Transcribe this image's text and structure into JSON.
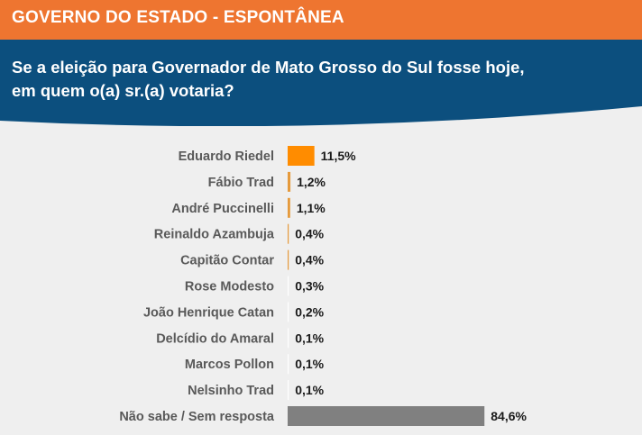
{
  "header": {
    "title": "GOVERNO DO ESTADO - ESPONTÂNEA",
    "question_line1": "Se a eleição para Governador de Mato Grosso do Sul fosse hoje,",
    "question_line2": "em quem o(a) sr.(a) votaria?"
  },
  "colors": {
    "header_orange": "#ee7530",
    "panel_blue": "#0c4f7e",
    "bar_orange": "#ff8c00",
    "bar_orange_thin": "#e59a3c",
    "bar_gray": "#808080",
    "background": "#efefef"
  },
  "chart_data": {
    "type": "bar",
    "orientation": "horizontal",
    "categories": [
      "Eduardo Riedel",
      "Fábio Trad",
      "André Puccinelli",
      "Reinaldo Azambuja",
      "Capitão Contar",
      "Rose Modesto",
      "João Henrique Catan",
      "Delcídio do Amaral",
      "Marcos Pollon",
      "Nelsinho Trad",
      "Não sabe / Sem resposta"
    ],
    "values": [
      11.5,
      1.2,
      1.1,
      0.4,
      0.4,
      0.3,
      0.2,
      0.1,
      0.1,
      0.1,
      84.6
    ],
    "value_labels": [
      "11,5%",
      "1,2%",
      "1,1%",
      "0,4%",
      "0,4%",
      "0,3%",
      "0,2%",
      "0,1%",
      "0,1%",
      "0,1%",
      "84,6%"
    ],
    "bar_colors": [
      "#ff8c00",
      "#e59a3c",
      "#e59a3c",
      "#e59a3c",
      "#e59a3c",
      "#ffffff",
      "#ffffff",
      "#ffffff",
      "#ffffff",
      "#ffffff",
      "#808080"
    ],
    "unit": "%",
    "grid": false,
    "legend": "none"
  }
}
